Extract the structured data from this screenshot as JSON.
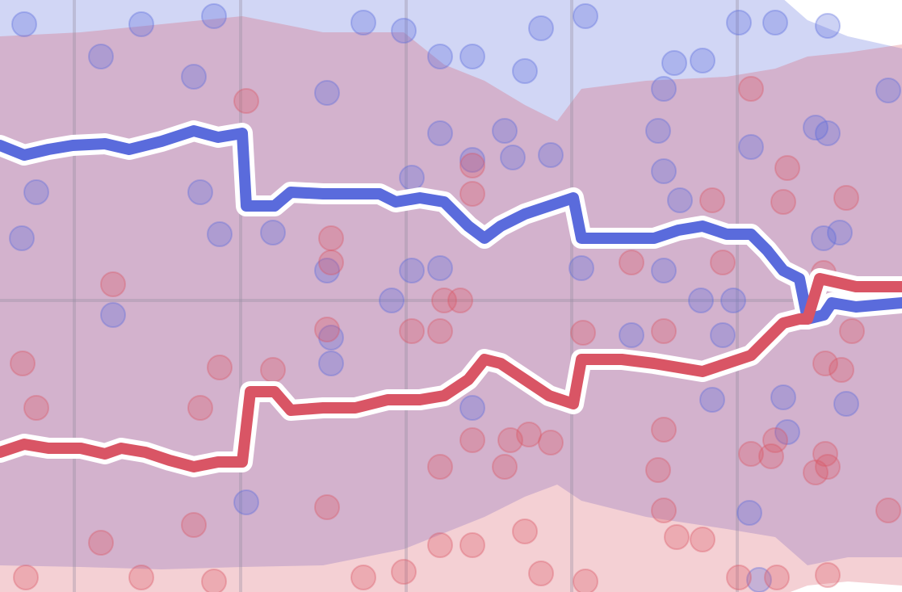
{
  "chart_data": {
    "type": "line",
    "xlim": [
      0,
      1117
    ],
    "ylim": [
      0,
      733
    ],
    "xticks": [
      92,
      298,
      503,
      708,
      913
    ],
    "yticks": [
      361
    ],
    "grid": true,
    "series": [
      {
        "color": "#5a6bdc",
        "x": [
          0,
          30,
          60,
          90,
          130,
          160,
          200,
          240,
          270,
          300,
          305,
          340,
          360,
          400,
          440,
          470,
          490,
          520,
          550,
          580,
          600,
          620,
          650,
          680,
          710,
          720,
          770,
          810,
          840,
          870,
          900,
          930,
          950,
          970,
          990,
          1000,
          1020,
          1030,
          1060,
          1117
        ],
        "values": [
          553,
          541,
          548,
          553,
          555,
          548,
          558,
          571,
          563,
          568,
          478,
          478,
          495,
          493,
          493,
          493,
          483,
          488,
          483,
          453,
          438,
          453,
          468,
          478,
          488,
          438,
          438,
          438,
          448,
          453,
          443,
          443,
          423,
          398,
          388,
          338,
          343,
          358,
          353,
          358
        ],
        "band": {
          "x": [
            0,
            100,
            200,
            300,
            400,
            500,
            550,
            600,
            650,
            690,
            720,
            800,
            900,
            960,
            1000,
            1050,
            1117
          ],
          "lower": [
            33,
            31,
            28,
            31,
            33,
            53,
            73,
            93,
            118,
            133,
            113,
            93,
            78,
            68,
            33,
            43,
            43
          ],
          "upper": [
            743,
            743,
            743,
            743,
            743,
            743,
            743,
            743,
            743,
            743,
            743,
            743,
            743,
            743,
            708,
            688,
            673
          ]
        },
        "points": {
          "x": [
            30,
            175,
            265,
            450,
            500,
            545,
            585,
            670,
            725,
            650,
            835,
            870,
            915,
            960,
            1025,
            125,
            240,
            405,
            822,
            1100,
            545,
            625,
            815,
            930,
            1010,
            1025,
            585,
            635,
            682,
            822,
            510,
            45,
            248,
            842,
            27,
            272,
            338,
            1020,
            1040,
            405,
            510,
            545,
            720,
            822,
            140,
            485,
            868,
            908,
            410,
            410,
            782,
            895,
            970,
            1048,
            882,
            585,
            975,
            305,
            928,
            940
          ],
          "y": [
            703,
            703,
            713,
            705,
            695,
            663,
            663,
            698,
            713,
            645,
            655,
            658,
            705,
            705,
            701,
            663,
            638,
            618,
            623,
            621,
            568,
            571,
            571,
            551,
            575,
            568,
            535,
            538,
            541,
            521,
            513,
            495,
            495,
            485,
            438,
            443,
            445,
            438,
            445,
            398,
            398,
            401,
            401,
            398,
            343,
            361,
            361,
            361,
            315,
            283,
            318,
            318,
            241,
            233,
            238,
            228,
            198,
            111,
            98,
            15
          ]
        }
      },
      {
        "color": "#d95565",
        "x": [
          0,
          30,
          60,
          100,
          130,
          150,
          180,
          210,
          240,
          270,
          300,
          310,
          340,
          360,
          400,
          440,
          480,
          520,
          550,
          580,
          600,
          620,
          650,
          680,
          710,
          720,
          770,
          810,
          840,
          870,
          900,
          930,
          950,
          970,
          990,
          1000,
          1015,
          1060,
          1117
        ],
        "values": [
          173,
          183,
          178,
          178,
          171,
          178,
          173,
          163,
          155,
          161,
          161,
          248,
          248,
          225,
          228,
          228,
          238,
          238,
          243,
          263,
          288,
          283,
          263,
          243,
          233,
          288,
          288,
          283,
          278,
          273,
          283,
          293,
          313,
          333,
          338,
          338,
          388,
          378,
          378
        ],
        "band": {
          "x": [
            0,
            100,
            200,
            300,
            400,
            500,
            550,
            600,
            650,
            690,
            720,
            800,
            900,
            960,
            1000,
            1050,
            1117
          ],
          "lower": [
            -7,
            -7,
            -7,
            -7,
            -7,
            -7,
            -7,
            -7,
            -7,
            -7,
            -7,
            -7,
            -7,
            -7,
            8,
            13,
            8
          ],
          "upper": [
            688,
            693,
            703,
            713,
            693,
            693,
            653,
            633,
            603,
            583,
            623,
            633,
            638,
            648,
            663,
            668,
            678
          ]
        },
        "points": {
          "x": [
            305,
            930,
            585,
            975,
            970,
            882,
            1048,
            585,
            410,
            410,
            782,
            895,
            140,
            1020,
            550,
            570,
            510,
            545,
            405,
            722,
            822,
            1055,
            28,
            272,
            338,
            1022,
            1042,
            45,
            248,
            822,
            585,
            632,
            655,
            682,
            960,
            1022,
            1025,
            1010,
            930,
            955,
            545,
            625,
            815,
            405,
            240,
            125,
            545,
            585,
            650,
            822,
            838,
            870,
            32,
            175,
            265,
            450,
            500,
            670,
            725,
            915,
            962,
            1025,
            1100
          ],
          "y": [
            608,
            623,
            528,
            525,
            483,
            485,
            488,
            493,
            438,
            408,
            408,
            408,
            381,
            395,
            361,
            361,
            323,
            323,
            325,
            321,
            323,
            323,
            283,
            278,
            275,
            283,
            275,
            228,
            228,
            201,
            188,
            188,
            195,
            185,
            188,
            171,
            155,
            148,
            171,
            168,
            155,
            155,
            151,
            105,
            83,
            61,
            58,
            58,
            75,
            101,
            68,
            65,
            18,
            18,
            13,
            18,
            25,
            23,
            13,
            18,
            18,
            21,
            101
          ]
        }
      }
    ]
  }
}
